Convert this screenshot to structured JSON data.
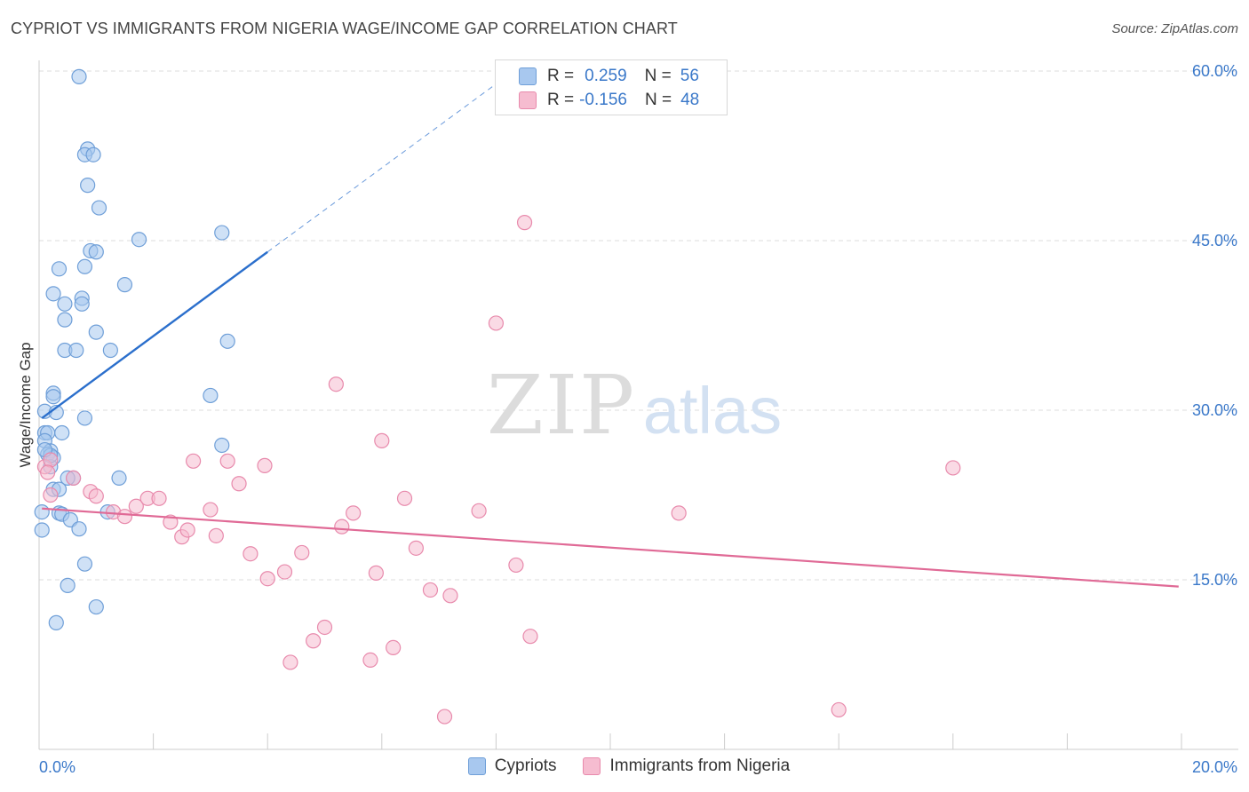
{
  "title": "CYPRIOT VS IMMIGRANTS FROM NIGERIA WAGE/INCOME GAP CORRELATION CHART",
  "source": "Source: ZipAtlas.com",
  "watermark": {
    "zip": "ZIP",
    "atlas": "atlas"
  },
  "legend": {
    "rows": [
      {
        "r_label": "R =",
        "r_value": "0.259",
        "n_label": "N =",
        "n_value": "56"
      },
      {
        "r_label": "R =",
        "r_value": "-0.156",
        "n_label": "N =",
        "n_value": "48"
      }
    ]
  },
  "bottom_legend": {
    "cypriots": "Cypriots",
    "nigeria": "Immigrants from Nigeria"
  },
  "chart_data": {
    "type": "scatter",
    "title": "CYPRIOT VS IMMIGRANTS FROM NIGERIA WAGE/INCOME GAP CORRELATION CHART",
    "xlabel": "",
    "ylabel": "Wage/Income Gap",
    "xlim": [
      0,
      20
    ],
    "ylim": [
      0,
      60
    ],
    "x_tick_labels": [
      "0.0%",
      "20.0%"
    ],
    "y_tick_labels": [
      "15.0%",
      "30.0%",
      "45.0%",
      "60.0%"
    ],
    "y_ticks": [
      15,
      30,
      45,
      60
    ],
    "x_minor_ticks": [
      0,
      2,
      4,
      6,
      8,
      10,
      12,
      14,
      16,
      18,
      20
    ],
    "grid": true,
    "colors": {
      "cypriots_fill": "#a8c8ef",
      "cypriots_stroke": "#6f9fd8",
      "cypriots_line": "#2b6fcc",
      "nigeria_fill": "#f6bcd0",
      "nigeria_stroke": "#e88aac",
      "nigeria_line": "#e06a96",
      "axis_label": "#3a78c9",
      "grid": "#dddddd"
    },
    "series": [
      {
        "name": "Cypriots",
        "r": 0.259,
        "n": 56,
        "trend": {
          "x0": 0.05,
          "y0": 29.3,
          "x1": 4.0,
          "y1": 44.0,
          "dash_x1": 8.2,
          "dash_y1": 59.6
        },
        "points": [
          [
            0.7,
            59.5
          ],
          [
            0.85,
            53.1
          ],
          [
            0.8,
            52.6
          ],
          [
            0.95,
            52.6
          ],
          [
            0.85,
            49.9
          ],
          [
            1.05,
            47.9
          ],
          [
            3.2,
            45.7
          ],
          [
            1.75,
            45.1
          ],
          [
            0.9,
            44.1
          ],
          [
            1.0,
            44.0
          ],
          [
            0.35,
            42.5
          ],
          [
            0.8,
            42.7
          ],
          [
            1.5,
            41.1
          ],
          [
            0.25,
            40.3
          ],
          [
            0.75,
            39.9
          ],
          [
            0.75,
            39.4
          ],
          [
            0.45,
            39.4
          ],
          [
            0.45,
            38.0
          ],
          [
            1.0,
            36.9
          ],
          [
            3.3,
            36.1
          ],
          [
            0.45,
            35.3
          ],
          [
            0.65,
            35.3
          ],
          [
            1.25,
            35.3
          ],
          [
            0.25,
            31.5
          ],
          [
            0.25,
            31.2
          ],
          [
            3.0,
            31.3
          ],
          [
            0.1,
            29.9
          ],
          [
            0.3,
            29.8
          ],
          [
            0.8,
            29.3
          ],
          [
            0.1,
            28.0
          ],
          [
            0.15,
            28.0
          ],
          [
            0.4,
            28.0
          ],
          [
            0.1,
            27.3
          ],
          [
            0.2,
            26.4
          ],
          [
            0.15,
            26.1
          ],
          [
            0.25,
            25.8
          ],
          [
            3.2,
            26.9
          ],
          [
            0.2,
            25.0
          ],
          [
            0.6,
            24.0
          ],
          [
            1.4,
            24.0
          ],
          [
            0.5,
            24.0
          ],
          [
            0.25,
            23.0
          ],
          [
            0.35,
            23.0
          ],
          [
            0.05,
            21.0
          ],
          [
            0.35,
            20.9
          ],
          [
            0.4,
            20.8
          ],
          [
            1.2,
            21.0
          ],
          [
            0.55,
            20.3
          ],
          [
            0.7,
            19.5
          ],
          [
            0.05,
            19.4
          ],
          [
            0.8,
            16.4
          ],
          [
            0.5,
            14.5
          ],
          [
            1.0,
            12.6
          ],
          [
            0.3,
            11.2
          ],
          [
            0.2,
            26.0
          ],
          [
            0.1,
            26.5
          ]
        ]
      },
      {
        "name": "Immigrants from Nigeria",
        "r": -0.156,
        "n": 48,
        "trend": {
          "x0": 0.05,
          "y0": 21.3,
          "x1": 19.95,
          "y1": 14.4
        },
        "points": [
          [
            0.1,
            25.0
          ],
          [
            0.2,
            25.6
          ],
          [
            0.2,
            22.5
          ],
          [
            0.9,
            22.8
          ],
          [
            1.0,
            22.4
          ],
          [
            1.3,
            21.0
          ],
          [
            1.5,
            20.6
          ],
          [
            1.7,
            21.5
          ],
          [
            1.9,
            22.2
          ],
          [
            2.1,
            22.2
          ],
          [
            2.3,
            20.1
          ],
          [
            2.5,
            18.8
          ],
          [
            2.6,
            19.4
          ],
          [
            2.7,
            25.5
          ],
          [
            3.3,
            25.5
          ],
          [
            3.0,
            21.2
          ],
          [
            3.1,
            18.9
          ],
          [
            3.5,
            23.5
          ],
          [
            3.7,
            17.3
          ],
          [
            3.95,
            25.1
          ],
          [
            4.0,
            15.1
          ],
          [
            4.3,
            15.7
          ],
          [
            4.4,
            7.7
          ],
          [
            4.6,
            17.4
          ],
          [
            4.8,
            9.6
          ],
          [
            5.0,
            10.8
          ],
          [
            5.2,
            32.3
          ],
          [
            5.3,
            19.7
          ],
          [
            5.5,
            20.9
          ],
          [
            5.8,
            7.9
          ],
          [
            5.9,
            15.6
          ],
          [
            6.0,
            27.3
          ],
          [
            6.2,
            9.0
          ],
          [
            6.4,
            22.2
          ],
          [
            6.6,
            17.8
          ],
          [
            6.85,
            14.1
          ],
          [
            7.1,
            2.9
          ],
          [
            7.2,
            13.6
          ],
          [
            7.7,
            21.1
          ],
          [
            8.0,
            37.7
          ],
          [
            8.35,
            16.3
          ],
          [
            8.5,
            46.6
          ],
          [
            8.6,
            10.0
          ],
          [
            11.2,
            20.9
          ],
          [
            14.0,
            3.5
          ],
          [
            16.0,
            24.9
          ],
          [
            0.6,
            24.0
          ],
          [
            0.15,
            24.5
          ]
        ]
      }
    ]
  }
}
